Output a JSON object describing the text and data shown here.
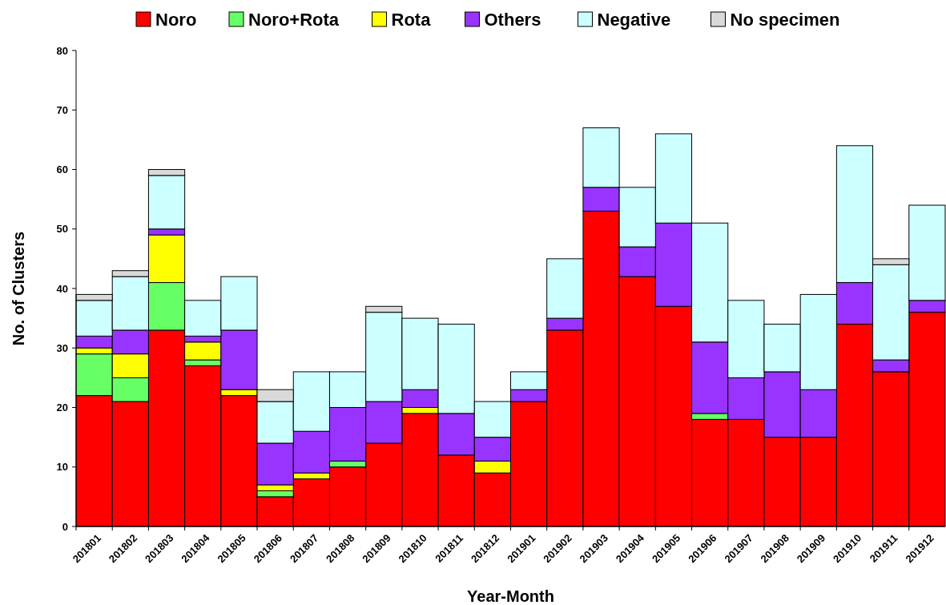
{
  "chart_data": {
    "type": "bar",
    "stacked": true,
    "xlabel": "Year-Month",
    "ylabel": "No. of Clusters",
    "legend": "top",
    "grid": false,
    "categories": [
      "201801",
      "201802",
      "201803",
      "201804",
      "201805",
      "201806",
      "201807",
      "201808",
      "201809",
      "201810",
      "201811",
      "201812",
      "201901",
      "201902",
      "201903",
      "201904",
      "201905",
      "201906",
      "201907",
      "201908",
      "201909",
      "201910",
      "201911",
      "201912"
    ],
    "ylim": [
      0,
      80
    ],
    "yticks": [
      0,
      10,
      20,
      30,
      40,
      50,
      60,
      70,
      80
    ],
    "series": [
      {
        "name": "Noro",
        "color": "#ff0000",
        "values": [
          22,
          21,
          33,
          27,
          22,
          5,
          8,
          10,
          14,
          19,
          12,
          9,
          21,
          33,
          53,
          42,
          37,
          18,
          18,
          15,
          15,
          34,
          26,
          36
        ]
      },
      {
        "name": "Noro+Rota",
        "color": "#66ff66",
        "values": [
          7,
          4,
          8,
          1,
          0,
          1,
          0,
          1,
          0,
          0,
          0,
          0,
          0,
          0,
          0,
          0,
          0,
          1,
          0,
          0,
          0,
          0,
          0,
          0
        ]
      },
      {
        "name": "Rota",
        "color": "#ffff00",
        "values": [
          1,
          4,
          8,
          3,
          1,
          1,
          1,
          0,
          0,
          1,
          0,
          2,
          0,
          0,
          0,
          0,
          0,
          0,
          0,
          0,
          0,
          0,
          0,
          0
        ]
      },
      {
        "name": "Others",
        "color": "#9933ff",
        "values": [
          2,
          4,
          1,
          1,
          10,
          7,
          7,
          9,
          7,
          3,
          7,
          4,
          2,
          2,
          4,
          5,
          14,
          12,
          7,
          11,
          8,
          7,
          2,
          2
        ]
      },
      {
        "name": "Negative",
        "color": "#ccffff",
        "values": [
          6,
          9,
          9,
          6,
          9,
          7,
          10,
          6,
          15,
          12,
          15,
          6,
          3,
          10,
          10,
          10,
          15,
          20,
          13,
          8,
          16,
          23,
          16,
          16
        ]
      },
      {
        "name": "No specimen",
        "color": "#d9d9d9",
        "values": [
          1,
          1,
          1,
          0,
          0,
          2,
          0,
          0,
          1,
          0,
          0,
          0,
          0,
          0,
          0,
          0,
          0,
          0,
          0,
          0,
          0,
          0,
          1,
          0
        ]
      }
    ]
  }
}
